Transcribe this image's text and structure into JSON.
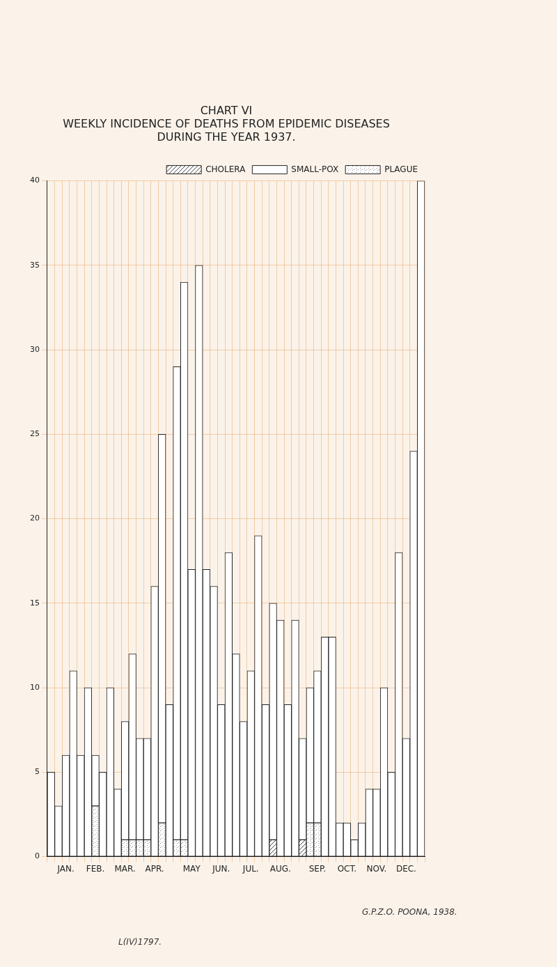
{
  "chart_data": {
    "type": "bar",
    "title": [
      "CHART VI",
      "WEEKLY INCIDENCE OF DEATHS FROM EPIDEMIC DISEASES",
      "DURING THE YEAR 1937."
    ],
    "annotations": [
      "G.P.Z.O. POONA, 1938.",
      "L(IV)1797."
    ],
    "categories": [
      null,
      null,
      "JAN.",
      null,
      null,
      null,
      "FEB.",
      null,
      null,
      null,
      "MAR.",
      null,
      null,
      null,
      "APR.",
      null,
      null,
      null,
      null,
      "MAY",
      null,
      null,
      null,
      "JUN.",
      null,
      null,
      null,
      "JUL.",
      null,
      null,
      null,
      "AUG.",
      null,
      null,
      null,
      null,
      "SEP.",
      null,
      null,
      null,
      "OCT.",
      null,
      null,
      null,
      "NOV.",
      null,
      null,
      null,
      "DEC.",
      null,
      null
    ],
    "series": [
      {
        "name": "CHOLERA",
        "color": "#444444",
        "values": [
          0,
          0,
          0,
          0,
          0,
          0,
          0,
          0,
          0,
          0,
          0,
          0,
          0,
          0,
          0,
          0,
          0,
          0,
          0,
          0,
          0,
          0,
          0,
          0,
          0,
          0,
          0,
          0,
          0,
          0,
          1,
          0,
          0,
          0,
          1,
          0,
          0,
          0,
          0,
          0,
          0,
          0,
          0,
          0,
          0,
          0,
          0,
          0,
          0,
          0,
          0
        ]
      },
      {
        "name": "SMALL-POX",
        "color": "#ffffff",
        "values": [
          5,
          3,
          6,
          11,
          6,
          10,
          3,
          5,
          10,
          4,
          7,
          11,
          6,
          6,
          16,
          23,
          9,
          28,
          33,
          17,
          35,
          17,
          16,
          9,
          18,
          12,
          8,
          11,
          19,
          9,
          14,
          14,
          9,
          14,
          6,
          8,
          9,
          13,
          13,
          2,
          2,
          1,
          2,
          4,
          4,
          10,
          5,
          18,
          7,
          24,
          40
        ]
      },
      {
        "name": "PLAGUE",
        "color": "#888888",
        "values": [
          0,
          0,
          0,
          0,
          0,
          0,
          3,
          0,
          0,
          0,
          1,
          1,
          1,
          1,
          0,
          2,
          0,
          1,
          1,
          0,
          0,
          0,
          0,
          0,
          0,
          0,
          0,
          0,
          0,
          0,
          0,
          0,
          0,
          0,
          0,
          2,
          2,
          0,
          0,
          0,
          0,
          0,
          0,
          0,
          0,
          0,
          0,
          0,
          0,
          0,
          0
        ]
      }
    ],
    "stacked": true,
    "ylim": [
      0,
      40
    ],
    "yticks": [
      0,
      5,
      10,
      15,
      20,
      25,
      30,
      35,
      40
    ],
    "grid": true,
    "legend": "upper right"
  }
}
